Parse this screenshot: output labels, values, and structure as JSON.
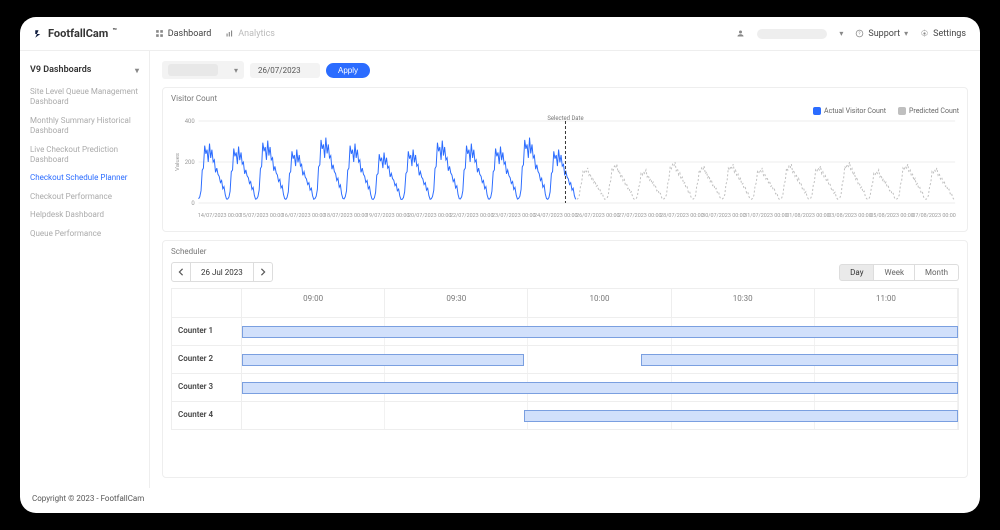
{
  "brand": {
    "name": "FootfallCam",
    "tm": "™"
  },
  "topnav": {
    "dashboard": "Dashboard",
    "analytics": "Analytics",
    "support": "Support",
    "settings": "Settings"
  },
  "sidebar": {
    "title": "V9 Dashboards",
    "items": [
      "Site Level Queue Management Dashboard",
      "Monthly Summary Historical Dashboard",
      "Live Checkout Prediction Dashboard",
      "Checkout Schedule Planner",
      "Checkout Performance",
      "Helpdesk Dashboard",
      "Queue Performance"
    ],
    "active_index": 3
  },
  "filters": {
    "date": "26/07/2023",
    "apply": "Apply"
  },
  "chart": {
    "title": "Visitor Count",
    "ylabel": "Values",
    "selected_label": "Selected Date",
    "legend": {
      "actual": "Actual Visitor Count",
      "predicted": "Predicted Count"
    },
    "legend_colors": {
      "actual": "#2b6cff",
      "predicted": "#bfbfbf"
    },
    "yticks": [
      0,
      200,
      400
    ],
    "ylim": [
      0,
      400
    ],
    "xlabels": [
      "14/07/2023 00:00",
      "15/07/2023 00:00",
      "16/07/2023 00:00",
      "18/07/2023 00:00",
      "19/07/2023 00:00",
      "20/07/2023 00:00",
      "22/07/2023 00:00",
      "23/07/2023 00:00",
      "24/07/2023 00:00",
      "26/07/2023 00:00",
      "27/07/2023 00:00",
      "28/07/2023 00:00",
      "30/07/2023 00:00",
      "31/07/2023 00:00",
      "01/08/2023 00:00",
      "03/08/2023 00:00",
      "05/08/2023 00:00",
      "07/08/2023 00:00"
    ],
    "marker_x_ratio": 0.485,
    "actual_color": "#2b6cff",
    "predicted_color": "#bfbfbf",
    "grid_color": "#eeeeee",
    "days_total": 26,
    "actual_days": 13,
    "day_profile_actual": [
      20,
      30,
      60,
      160,
      170,
      280,
      240,
      260,
      200,
      290,
      220,
      260,
      200,
      210,
      150,
      170,
      140,
      130,
      100,
      110,
      70,
      80,
      40,
      20
    ],
    "day_profile_predicted": [
      20,
      25,
      40,
      90,
      110,
      170,
      160,
      180,
      170,
      190,
      150,
      160,
      130,
      140,
      110,
      120,
      90,
      95,
      70,
      75,
      50,
      55,
      30,
      20
    ],
    "day_scale_actual": [
      1.0,
      0.95,
      1.05,
      0.9,
      1.1,
      1.0,
      0.85,
      0.9,
      1.05,
      1.0,
      0.95,
      1.1,
      0.9
    ],
    "day_scale_predicted": [
      0.9,
      1.0,
      0.85,
      1.05,
      0.95,
      1.0,
      0.9,
      1.0,
      0.95,
      1.05,
      0.85,
      1.0,
      0.9
    ]
  },
  "scheduler": {
    "title": "Scheduler",
    "date_label": "26 Jul 2023",
    "views": {
      "day": "Day",
      "week": "Week",
      "month": "Month"
    },
    "active_view": "day",
    "time_start_min": 525,
    "time_end_min": 690,
    "time_headers": [
      "09:00",
      "09:30",
      "10:00",
      "10:30",
      "11:00"
    ],
    "counters": [
      {
        "name": "Counter 1",
        "bars": [
          {
            "start_min": 525,
            "end_min": 690
          }
        ]
      },
      {
        "name": "Counter 2",
        "bars": [
          {
            "start_min": 525,
            "end_min": 590
          },
          {
            "start_min": 617,
            "end_min": 690
          }
        ]
      },
      {
        "name": "Counter 3",
        "bars": [
          {
            "start_min": 525,
            "end_min": 690
          }
        ]
      },
      {
        "name": "Counter 4",
        "bars": [
          {
            "start_min": 590,
            "end_min": 690
          }
        ]
      }
    ],
    "bar_fill": "#d1e0fb",
    "bar_border": "#7a9fe0"
  },
  "footer": "Copyright © 2023 - FootfallCam"
}
